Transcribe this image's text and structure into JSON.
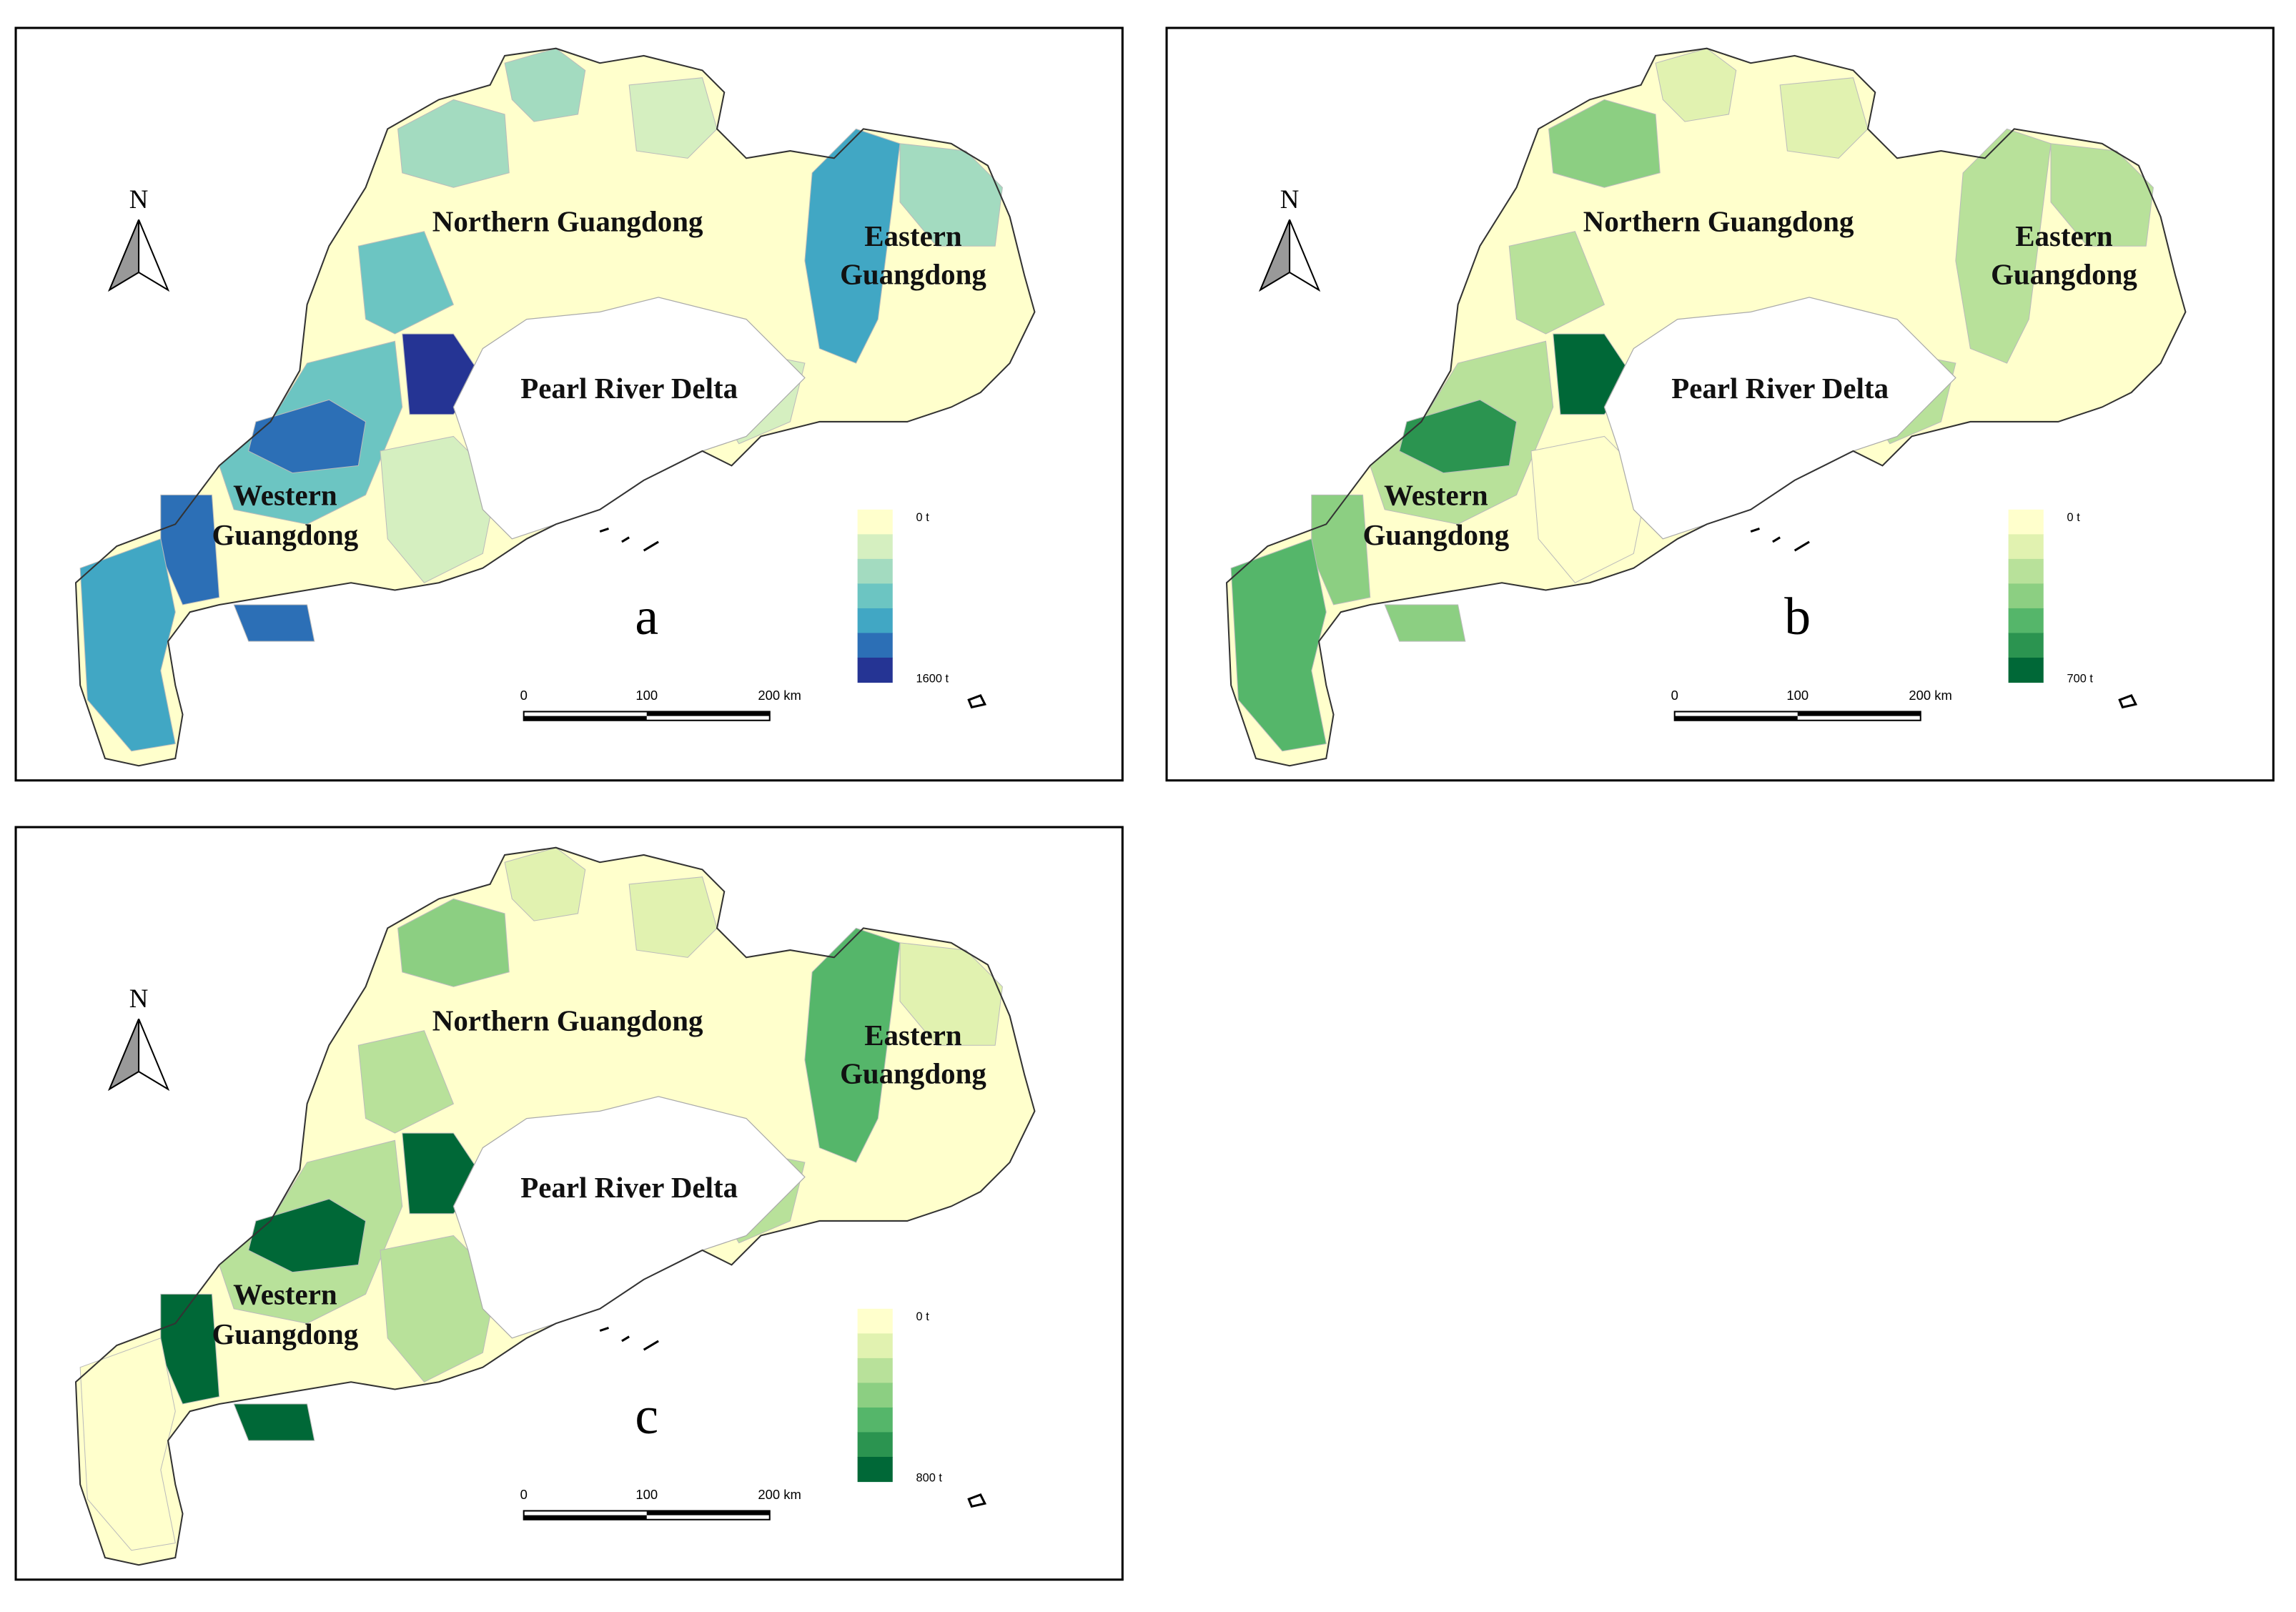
{
  "north": "N",
  "scale_bar": [
    "0",
    "100",
    "200 km"
  ],
  "regions": [
    {
      "lines": [
        "Northern Guangdong"
      ]
    },
    {
      "lines": [
        "Eastern",
        "Guangdong"
      ]
    },
    {
      "lines": [
        "Pearl River Delta"
      ]
    },
    {
      "lines": [
        "Western",
        "Guangdong"
      ]
    }
  ],
  "panels": [
    {
      "label": "a",
      "legend": {
        "min_label": "0 t",
        "max_label": "1600 t",
        "colors": [
          "#ffffcc",
          "#d5efc0",
          "#a3dbc0",
          "#6cc5c2",
          "#41a7c4",
          "#2c6fb6",
          "#253494"
        ]
      }
    },
    {
      "label": "b",
      "legend": {
        "min_label": "0 t",
        "max_label": "700 t",
        "colors": [
          "#ffffcc",
          "#e1f2b0",
          "#b8e19a",
          "#8ccf82",
          "#55b66a",
          "#2b9450",
          "#006837"
        ]
      }
    },
    {
      "label": "c",
      "legend": {
        "min_label": "0 t",
        "max_label": "800 t",
        "colors": [
          "#ffffcc",
          "#e1f2b0",
          "#b8e19a",
          "#8ccf82",
          "#55b66a",
          "#2b9450",
          "#006837"
        ]
      }
    }
  ]
}
